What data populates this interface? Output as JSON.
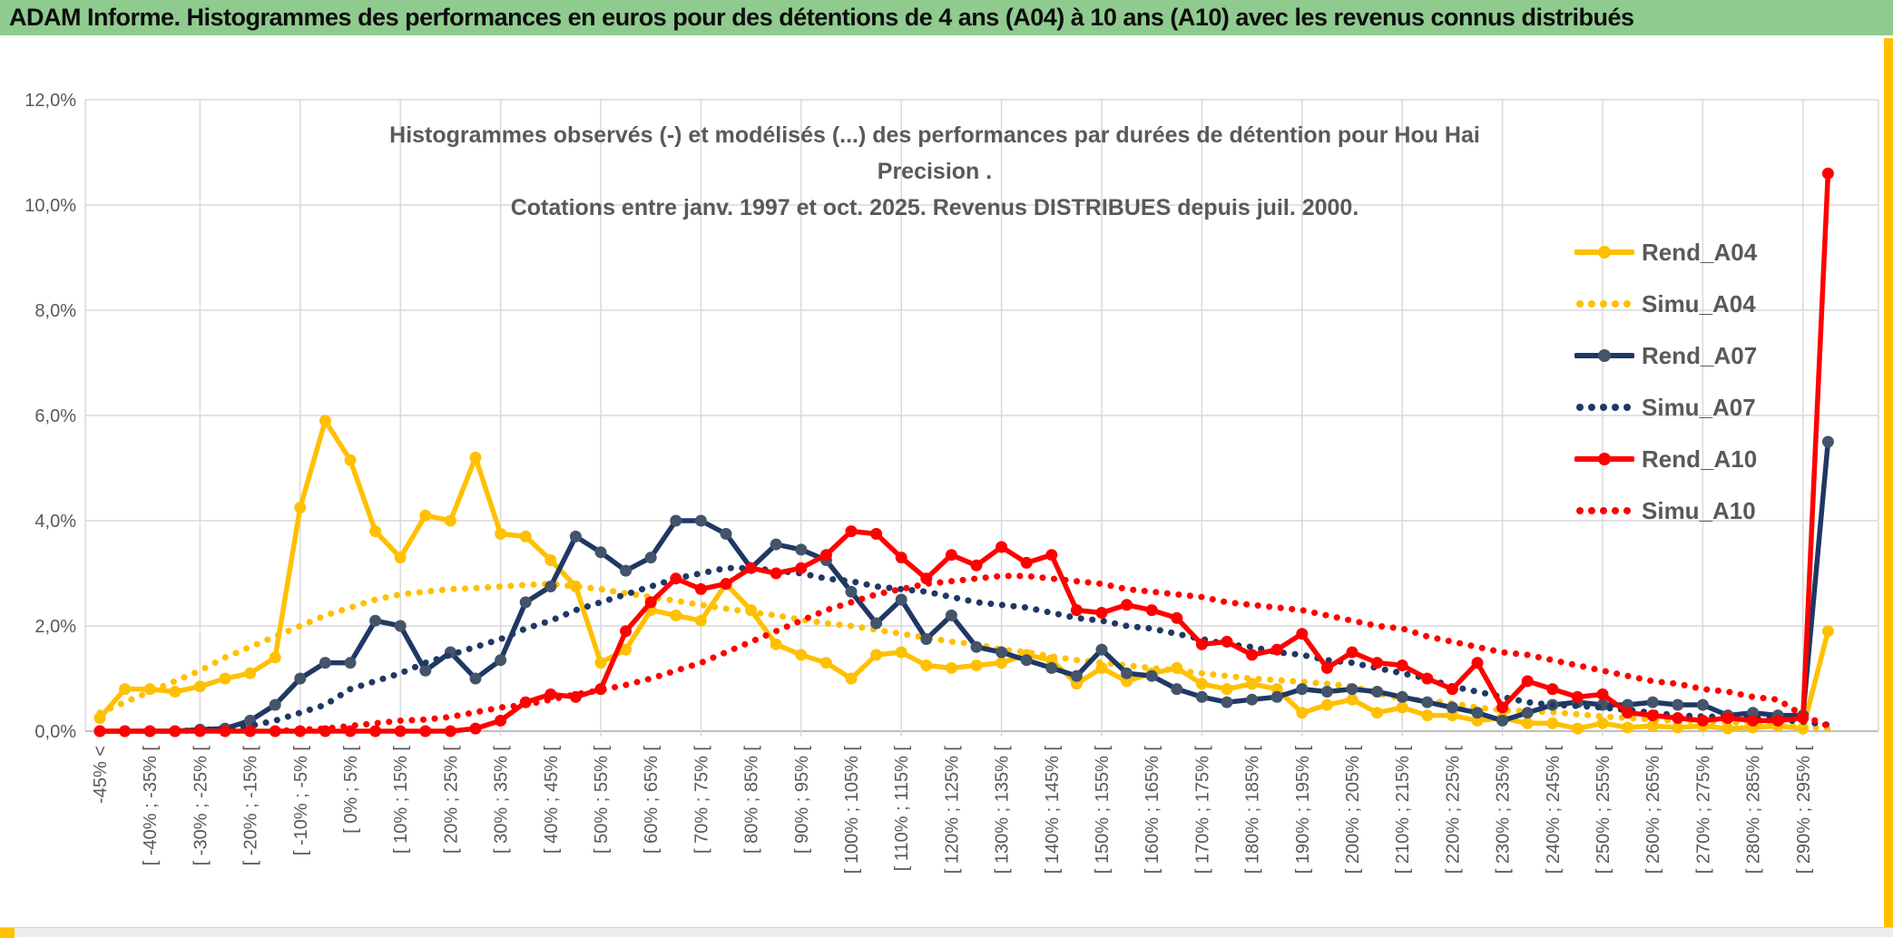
{
  "window": {
    "header_title": "ADAM Informe. Histogrammes des performances en euros pour des détentions de 4 ans (A04) à 10 ans (A10) avec les revenus connus distribués",
    "colors": {
      "header_bg": "#8FCB8F",
      "accent_gold": "#FFC000",
      "text_dark": "#0d0d0d",
      "chart_text_gray": "#595959",
      "gridline": "#D9D9D9",
      "axis_line": "#BFBFBF",
      "bottom_strip_bg": "#EDEDED"
    }
  },
  "chart": {
    "title_line1": "Histogrammes observés (-) et modélisés (...) des performances par durées de détention pour Hou Hai Precision .",
    "title_line2": "Cotations entre janv. 1997 et oct. 2025. Revenus DISTRIBUES depuis juil. 2000."
  },
  "legend": {
    "items": [
      {
        "label": "Rend_A04",
        "color": "#FFC000",
        "marker_color": "#FFC000",
        "style": "solid"
      },
      {
        "label": "Simu_A04",
        "color": "#FFC000",
        "marker_color": "#FFC000",
        "style": "dotted"
      },
      {
        "label": "Rend_A07",
        "color": "#1F3864",
        "marker_color": "#44546A",
        "style": "solid"
      },
      {
        "label": "Simu_A07",
        "color": "#1F3864",
        "marker_color": "#1F3864",
        "style": "dotted"
      },
      {
        "label": "Rend_A10",
        "color": "#FF0000",
        "marker_color": "#FF0000",
        "style": "solid"
      },
      {
        "label": "Simu_A10",
        "color": "#FF0000",
        "marker_color": "#FF0000",
        "style": "dotted"
      }
    ]
  },
  "chart_data": {
    "type": "line",
    "title": "Histogrammes observés (-) et modélisés (...) des performances par durées de détention pour Hou Hai Precision . Cotations entre janv. 1997 et oct. 2025. Revenus DISTRIBUES depuis juil. 2000.",
    "ylabel": "",
    "xlabel": "",
    "ylim": [
      0,
      12
    ],
    "y_tick_labels": [
      "0,0%",
      "2,0%",
      "4,0%",
      "6,0%",
      "8,0%",
      "10,0%",
      "12,0%"
    ],
    "grid": true,
    "legend_position": "right-inside",
    "note": "70 histogram bins of 5% width; x tick labels are shown only on every other bin (bins 0,2,4,...,68); values in percent of observations",
    "x_tick_labels": [
      "-45% <",
      "[ -40% ; -35% [",
      "[ -30% ; -25% [",
      "[ -20% ; -15% [",
      "[ -10% ; -5% [",
      "[ 0% ; 5% [",
      "[ 10% ; 15% [",
      "[ 20% ; 25% [",
      "[ 30% ; 35% [",
      "[ 40% ; 45% [",
      "[ 50% ; 55% [",
      "[ 60% ; 65% [",
      "[ 70% ; 75% [",
      "[ 80% ; 85% [",
      "[ 90% ; 95% [",
      "[ 100% ; 105% [",
      "[ 110% ; 115% [",
      "[ 120% ; 125% [",
      "[ 130% ; 135% [",
      "[ 140% ; 145% [",
      "[ 150% ; 155% [",
      "[ 160% ; 165% [",
      "[ 170% ; 175% [",
      "[ 180% ; 185% [",
      "[ 190% ; 195% [",
      "[ 200% ; 205% [",
      "[ 210% ; 215% [",
      "[ 220% ; 225% [",
      "[ 230% ; 235% [",
      "[ 240% ; 245% [",
      "[ 250% ; 255% [",
      "[ 260% ; 265% [",
      "[ 270% ; 275% [",
      "[ 280% ; 285% [",
      "[ 290% ; 295% ["
    ],
    "series": [
      {
        "name": "Rend_A04",
        "style": "solid",
        "color": "#FFC000",
        "marker_color": "#FFC000",
        "values": [
          0.25,
          0.8,
          0.8,
          0.75,
          0.85,
          1.0,
          1.1,
          1.4,
          4.25,
          5.9,
          5.15,
          3.8,
          3.3,
          4.1,
          4.0,
          5.2,
          3.75,
          3.7,
          3.25,
          2.75,
          1.3,
          1.55,
          2.3,
          2.2,
          2.1,
          2.8,
          2.3,
          1.65,
          1.45,
          1.3,
          1.0,
          1.45,
          1.5,
          1.25,
          1.2,
          1.25,
          1.3,
          1.45,
          1.35,
          0.9,
          1.2,
          0.95,
          1.1,
          1.2,
          0.9,
          0.8,
          0.9,
          0.8,
          0.35,
          0.5,
          0.6,
          0.35,
          0.45,
          0.3,
          0.3,
          0.2,
          0.25,
          0.15,
          0.15,
          0.05,
          0.15,
          0.07,
          0.1,
          0.07,
          0.1,
          0.05,
          0.07,
          0.1,
          0.05,
          1.9
        ]
      },
      {
        "name": "Simu_A04",
        "style": "dotted",
        "color": "#FFC000",
        "marker_color": "#FFC000",
        "values": [
          0.35,
          0.55,
          0.75,
          0.95,
          1.15,
          1.4,
          1.6,
          1.8,
          2.0,
          2.2,
          2.35,
          2.5,
          2.6,
          2.65,
          2.7,
          2.72,
          2.75,
          2.78,
          2.8,
          2.75,
          2.7,
          2.62,
          2.55,
          2.48,
          2.4,
          2.33,
          2.26,
          2.2,
          2.12,
          2.05,
          2.0,
          1.93,
          1.85,
          1.78,
          1.7,
          1.65,
          1.55,
          1.5,
          1.42,
          1.35,
          1.3,
          1.25,
          1.2,
          1.15,
          1.1,
          1.05,
          1.0,
          0.97,
          0.94,
          0.9,
          0.85,
          0.72,
          0.62,
          0.58,
          0.53,
          0.45,
          0.4,
          0.38,
          0.36,
          0.32,
          0.28,
          0.25,
          0.22,
          0.2,
          0.19,
          0.17,
          0.16,
          0.12,
          0.08,
          0.05
        ]
      },
      {
        "name": "Rend_A07",
        "style": "solid",
        "color": "#1F3864",
        "marker_color": "#44546A",
        "values": [
          0.0,
          0.0,
          0.0,
          0.0,
          0.03,
          0.05,
          0.2,
          0.5,
          1.0,
          1.3,
          1.3,
          2.1,
          2.0,
          1.15,
          1.5,
          1.0,
          1.35,
          2.45,
          2.75,
          3.7,
          3.4,
          3.05,
          3.3,
          4.0,
          4.0,
          3.75,
          3.1,
          3.55,
          3.45,
          3.25,
          2.65,
          2.05,
          2.5,
          1.75,
          2.2,
          1.6,
          1.5,
          1.35,
          1.2,
          1.05,
          1.55,
          1.1,
          1.05,
          0.8,
          0.65,
          0.55,
          0.6,
          0.65,
          0.8,
          0.75,
          0.8,
          0.75,
          0.65,
          0.55,
          0.45,
          0.35,
          0.2,
          0.35,
          0.5,
          0.55,
          0.5,
          0.5,
          0.55,
          0.5,
          0.5,
          0.3,
          0.35,
          0.3,
          0.3,
          5.5
        ]
      },
      {
        "name": "Simu_A07",
        "style": "dotted",
        "color": "#1F3864",
        "marker_color": "#1F3864",
        "values": [
          0.0,
          0.0,
          0.0,
          0.0,
          0.02,
          0.05,
          0.1,
          0.2,
          0.35,
          0.5,
          0.8,
          0.95,
          1.1,
          1.3,
          1.45,
          1.6,
          1.75,
          1.95,
          2.1,
          2.3,
          2.45,
          2.6,
          2.75,
          2.9,
          3.0,
          3.1,
          3.1,
          3.05,
          3.0,
          2.9,
          2.85,
          2.75,
          2.7,
          2.65,
          2.55,
          2.45,
          2.4,
          2.35,
          2.25,
          2.15,
          2.1,
          2.0,
          1.95,
          1.85,
          1.75,
          1.65,
          1.6,
          1.5,
          1.45,
          1.35,
          1.3,
          1.2,
          1.1,
          1.0,
          0.85,
          0.75,
          0.65,
          0.55,
          0.5,
          0.48,
          0.45,
          0.4,
          0.35,
          0.3,
          0.28,
          0.27,
          0.25,
          0.22,
          0.18,
          0.12
        ]
      },
      {
        "name": "Rend_A10",
        "style": "solid",
        "color": "#FF0000",
        "marker_color": "#FF0000",
        "values": [
          0.0,
          0.0,
          0.0,
          0.0,
          0.0,
          0.0,
          0.0,
          0.0,
          0.0,
          0.0,
          0.0,
          0.0,
          0.0,
          0.0,
          0.0,
          0.05,
          0.2,
          0.55,
          0.7,
          0.65,
          0.8,
          1.9,
          2.45,
          2.9,
          2.7,
          2.8,
          3.1,
          3.0,
          3.1,
          3.35,
          3.8,
          3.75,
          3.3,
          2.9,
          3.35,
          3.15,
          3.5,
          3.2,
          3.35,
          2.3,
          2.25,
          2.4,
          2.3,
          2.15,
          1.65,
          1.7,
          1.45,
          1.55,
          1.85,
          1.2,
          1.5,
          1.3,
          1.25,
          1.0,
          0.8,
          1.3,
          0.45,
          0.95,
          0.8,
          0.65,
          0.7,
          0.35,
          0.3,
          0.25,
          0.2,
          0.25,
          0.2,
          0.2,
          0.25,
          10.6
        ]
      },
      {
        "name": "Simu_A10",
        "style": "dotted",
        "color": "#FF0000",
        "marker_color": "#FF0000",
        "values": [
          0.0,
          0.0,
          0.0,
          0.0,
          0.0,
          0.0,
          0.0,
          0.0,
          0.03,
          0.05,
          0.1,
          0.15,
          0.2,
          0.22,
          0.27,
          0.36,
          0.45,
          0.5,
          0.6,
          0.7,
          0.78,
          0.88,
          1.0,
          1.15,
          1.3,
          1.5,
          1.7,
          1.9,
          2.1,
          2.3,
          2.45,
          2.6,
          2.7,
          2.8,
          2.85,
          2.9,
          2.95,
          2.95,
          2.9,
          2.85,
          2.8,
          2.7,
          2.65,
          2.6,
          2.55,
          2.45,
          2.4,
          2.35,
          2.3,
          2.2,
          2.1,
          2.0,
          1.95,
          1.8,
          1.7,
          1.6,
          1.5,
          1.45,
          1.35,
          1.25,
          1.15,
          1.05,
          0.95,
          0.9,
          0.8,
          0.75,
          0.65,
          0.6,
          0.3,
          0.1
        ]
      }
    ]
  }
}
